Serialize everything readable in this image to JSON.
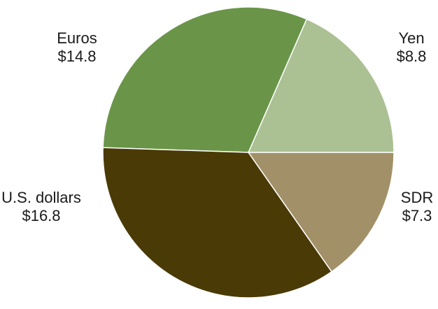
{
  "chart_data": {
    "type": "pie",
    "start_angle_deg": 0,
    "direction": "counterclockwise",
    "slices": [
      {
        "label": "Yen",
        "value": 8.8,
        "value_label": "$8.8",
        "color": "#abc193"
      },
      {
        "label": "Euros",
        "value": 14.8,
        "value_label": "$14.8",
        "color": "#6a9548"
      },
      {
        "label": "U.S. dollars",
        "value": 16.8,
        "value_label": "$16.8",
        "color": "#4a3a06"
      },
      {
        "label": "SDR",
        "value": 7.3,
        "value_label": "$7.3",
        "color": "#a29168"
      }
    ],
    "title": "",
    "legend": "none"
  }
}
